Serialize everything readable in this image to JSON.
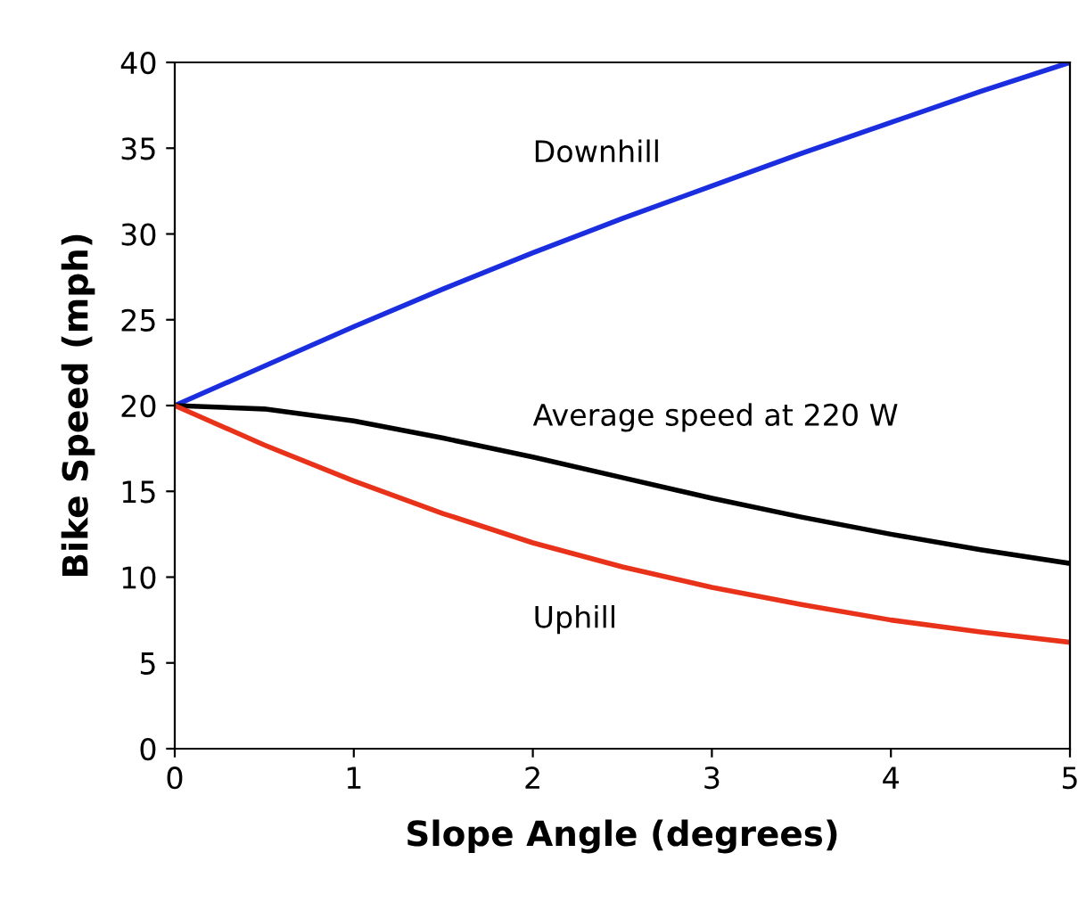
{
  "chart_data": {
    "type": "line",
    "xlabel": "Slope Angle (degrees)",
    "ylabel": "Bike Speed (mph)",
    "x": [
      0,
      0.5,
      1,
      1.5,
      2,
      2.5,
      3,
      3.5,
      4,
      4.5,
      5
    ],
    "series": [
      {
        "name": "Downhill",
        "color": "#1a2ee0",
        "values": [
          20,
          22.3,
          24.6,
          26.8,
          28.9,
          30.9,
          32.8,
          34.7,
          36.5,
          38.3,
          40
        ]
      },
      {
        "name": "Average speed at 220 W",
        "color": "#000000",
        "values": [
          20,
          19.8,
          19.1,
          18.1,
          17.0,
          15.8,
          14.6,
          13.5,
          12.5,
          11.6,
          10.8
        ]
      },
      {
        "name": "Uphill",
        "color": "#e8321a",
        "values": [
          20,
          17.7,
          15.6,
          13.7,
          12.0,
          10.6,
          9.4,
          8.4,
          7.5,
          6.8,
          6.2
        ]
      }
    ],
    "xlim": [
      0,
      5
    ],
    "xticks": [
      0,
      1,
      2,
      3,
      4,
      5
    ],
    "ylim": [
      0,
      40
    ],
    "yticks": [
      0,
      5,
      10,
      15,
      20,
      25,
      30,
      35,
      40
    ],
    "grid": false,
    "legend": false,
    "marker": "none",
    "line_style": "solid"
  }
}
